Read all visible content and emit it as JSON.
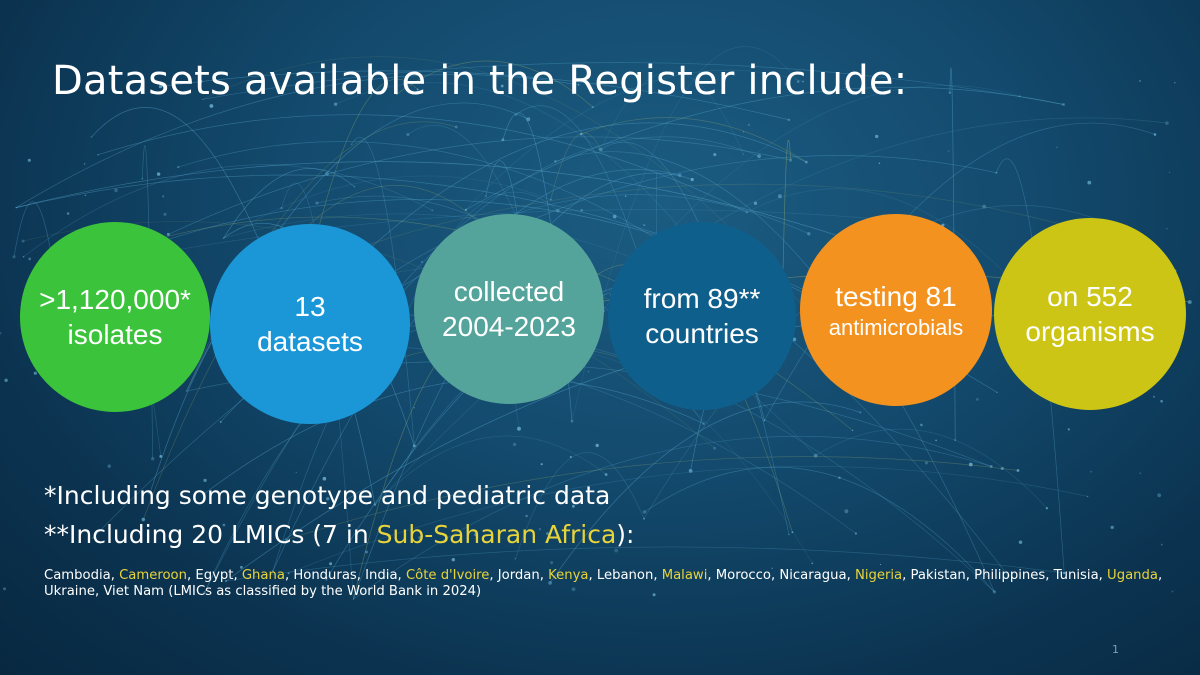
{
  "title": "Datasets available in the Register include:",
  "circles": [
    {
      "line1": ">1,120,000*",
      "line2": "isolates",
      "color": "#3cc33c"
    },
    {
      "line1": "13",
      "line2": "datasets",
      "color": "#1b97d7"
    },
    {
      "line1": "collected",
      "line2": "2004-2023",
      "color": "#54a49b"
    },
    {
      "line1": "from 89**",
      "line2": "countries",
      "color": "#0f5f8c"
    },
    {
      "line1": "testing 81",
      "line2": "antimicrobials",
      "color": "#f3921f"
    },
    {
      "line1": "on 552",
      "line2": "organisms",
      "color": "#cdc515"
    }
  ],
  "notes": {
    "note1": "*Including some genotype and pediatric data",
    "note2_prefix": "**Including 20 LMICs (7 in ",
    "note2_highlight": "Sub-Saharan Africa",
    "note2_suffix": "):"
  },
  "countries": [
    {
      "name": "Cambodia",
      "highlight": false
    },
    {
      "name": "Cameroon",
      "highlight": true
    },
    {
      "name": "Egypt",
      "highlight": false
    },
    {
      "name": "Ghana",
      "highlight": true
    },
    {
      "name": "Honduras",
      "highlight": false
    },
    {
      "name": "India",
      "highlight": false
    },
    {
      "name": "Côte d'Ivoire",
      "highlight": true
    },
    {
      "name": "Jordan",
      "highlight": false
    },
    {
      "name": "Kenya",
      "highlight": true
    },
    {
      "name": "Lebanon",
      "highlight": false
    },
    {
      "name": "Malawi",
      "highlight": true
    },
    {
      "name": "Morocco",
      "highlight": false
    },
    {
      "name": "Nicaragua",
      "highlight": false
    },
    {
      "name": "Nigeria",
      "highlight": true
    },
    {
      "name": "Pakistan",
      "highlight": false
    },
    {
      "name": "Philippines",
      "highlight": false
    },
    {
      "name": "Tunisia",
      "highlight": false
    },
    {
      "name": "Uganda",
      "highlight": true
    },
    {
      "name": "Ukraine",
      "highlight": false
    },
    {
      "name": "Viet Nam",
      "highlight": false
    }
  ],
  "countries_suffix": " (LMICs as classified by the World Bank in 2024)",
  "page_number": "1",
  "highlight_color": "#e8d43a"
}
